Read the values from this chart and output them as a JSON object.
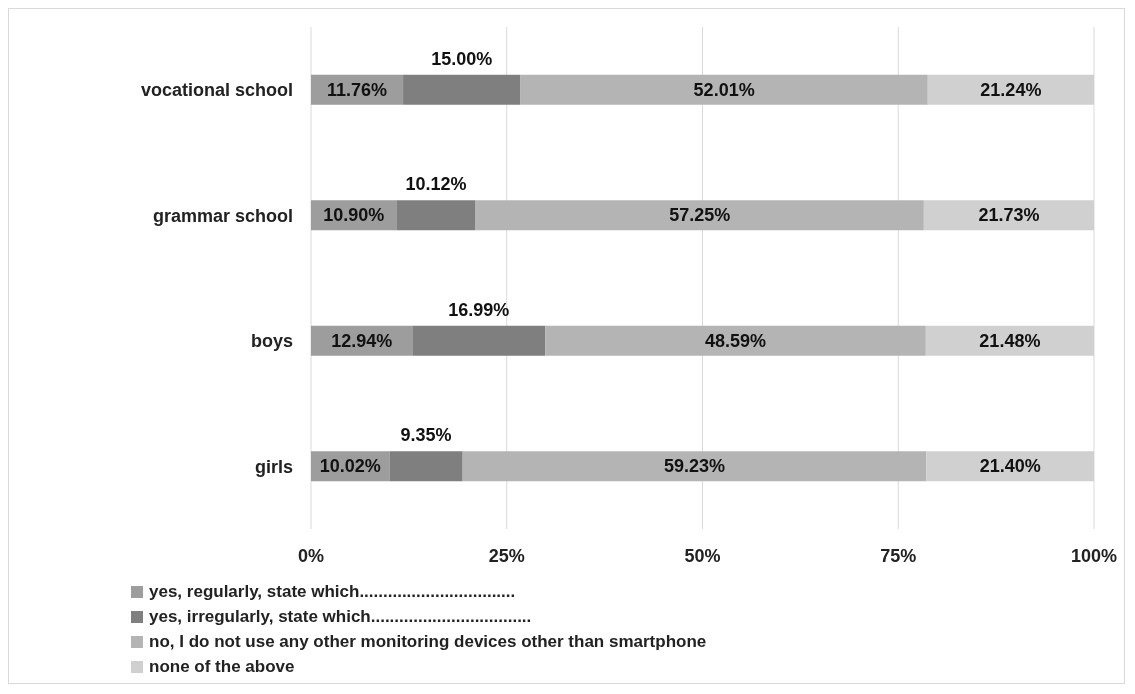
{
  "chart_data": {
    "type": "bar",
    "orientation": "horizontal",
    "stacked": true,
    "categories": [
      "vocational school",
      "grammar school",
      "boys",
      "girls"
    ],
    "series": [
      {
        "name": "yes, regularly, state which.................................",
        "color": "#9d9d9d",
        "values": [
          11.76,
          10.9,
          12.94,
          10.02
        ],
        "value_labels": [
          "11.76%",
          "10.90%",
          "12.94%",
          "10.02%"
        ]
      },
      {
        "name": "yes, irregularly, state which..................................",
        "color": "#7f7f7f",
        "values": [
          15.0,
          10.12,
          16.99,
          9.35
        ],
        "value_labels": [
          "15.00%",
          "10.12%",
          "16.99%",
          "9.35%"
        ]
      },
      {
        "name": "no, I do not use any other monitoring devices other than smartphone",
        "color": "#b4b4b4",
        "values": [
          52.01,
          57.25,
          48.59,
          59.23
        ],
        "value_labels": [
          "52.01%",
          "57.25%",
          "48.59%",
          "59.23%"
        ]
      },
      {
        "name": "none of the above",
        "color": "#d0d0d0",
        "values": [
          21.24,
          21.73,
          21.48,
          21.4
        ],
        "value_labels": [
          "21.24%",
          "21.73%",
          "21.48%",
          "21.40%"
        ]
      }
    ],
    "xlim": [
      0,
      100
    ],
    "xticks": [
      {
        "value": 0,
        "label": "0%"
      },
      {
        "value": 25,
        "label": "25%"
      },
      {
        "value": 50,
        "label": "50%"
      },
      {
        "value": 75,
        "label": "75%"
      },
      {
        "value": 100,
        "label": "100%"
      }
    ],
    "grid": "x",
    "legend": "bottom left"
  }
}
